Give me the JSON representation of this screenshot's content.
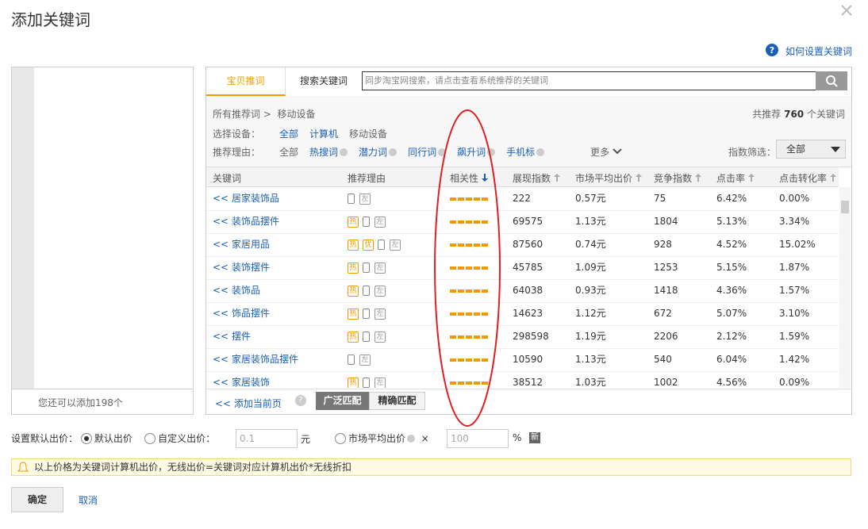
{
  "dialog": {
    "title": "添加关键词"
  },
  "help_link": "如何设置关键词",
  "left_panel": {
    "remaining": "您还可以添加198个"
  },
  "tabs": [
    "宝贝推词",
    "搜索关键词"
  ],
  "search": {
    "placeholder": "同步淘宝网搜索，请点击查看系统推荐的关键词"
  },
  "breadcrumb": {
    "root": "所有推荐词 >",
    "current": "移动设备"
  },
  "total": {
    "prefix": "共推荐",
    "count": "760",
    "suffix": "个关键词"
  },
  "device_filter": {
    "label": "选择设备：",
    "options": [
      "全部",
      "计算机",
      "移动设备"
    ]
  },
  "reason_filter": {
    "label": "推荐理由：",
    "options": [
      "全部",
      "热搜词",
      "潜力词",
      "同行词",
      "飙升词",
      "手机标"
    ],
    "more": "更多"
  },
  "index_filter": {
    "label": "指数筛选：",
    "selected": "全部"
  },
  "table": {
    "columns": [
      "关键词",
      "推荐理由",
      "相关性",
      "展现指数",
      "市场平均出价",
      "竞争指数",
      "点击率",
      "点击转化率"
    ],
    "add_prefix": "<<",
    "rows": [
      {
        "keyword": "居家装饰品",
        "tags": [],
        "side": "左",
        "values": [
          "222",
          "0.57元",
          "75",
          "6.42%",
          "0.00%"
        ]
      },
      {
        "keyword": "装饰品摆件",
        "tags": [
          "热"
        ],
        "side": "左",
        "values": [
          "69575",
          "1.13元",
          "1804",
          "5.13%",
          "3.34%"
        ]
      },
      {
        "keyword": "家居用品",
        "tags": [
          "热",
          "优"
        ],
        "side": "左",
        "values": [
          "87560",
          "0.74元",
          "928",
          "4.52%",
          "15.02%"
        ]
      },
      {
        "keyword": "装饰摆件",
        "tags": [
          "热"
        ],
        "side": "左",
        "values": [
          "45785",
          "1.09元",
          "1253",
          "5.15%",
          "1.87%"
        ]
      },
      {
        "keyword": "装饰品",
        "tags": [
          "热"
        ],
        "side": "左",
        "values": [
          "64038",
          "0.93元",
          "1418",
          "4.36%",
          "1.57%"
        ]
      },
      {
        "keyword": "饰品摆件",
        "tags": [
          "热"
        ],
        "side": "左",
        "values": [
          "14623",
          "1.12元",
          "672",
          "5.07%",
          "3.10%"
        ]
      },
      {
        "keyword": "摆件",
        "tags": [
          "热"
        ],
        "side": "左",
        "values": [
          "298598",
          "1.19元",
          "2206",
          "2.12%",
          "1.59%"
        ]
      },
      {
        "keyword": "家居装饰品摆件",
        "tags": [],
        "side": "左",
        "values": [
          "10590",
          "1.13元",
          "540",
          "6.04%",
          "1.42%"
        ]
      },
      {
        "keyword": "家居装饰",
        "tags": [
          "热"
        ],
        "side": "左",
        "values": [
          "38512",
          "1.03元",
          "1002",
          "4.56%",
          "0.09%"
        ]
      }
    ]
  },
  "footer": {
    "add_page": "<< 添加当前页",
    "match": [
      "广泛匹配",
      "精确匹配"
    ]
  },
  "bid": {
    "label": "设置默认出价：",
    "default": "默认出价",
    "custom": "自定义出价：",
    "custom_value": "0.1",
    "unit": "元",
    "market": "市场平均出价",
    "times": "×",
    "percent_value": "100",
    "percent": "%",
    "new_badge": "新"
  },
  "notice": "以上价格为关键词计算机出价，无线出价=关键词对应计算机出价*无线折扣",
  "actions": {
    "confirm": "确定",
    "cancel": "取消"
  }
}
